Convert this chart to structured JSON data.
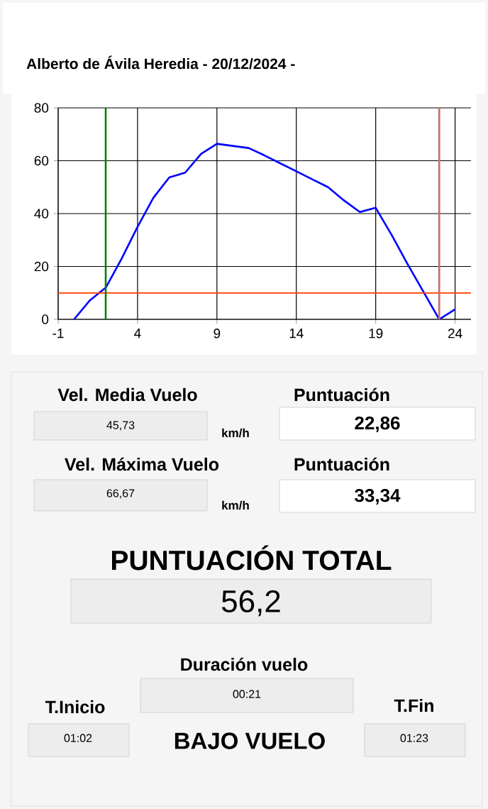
{
  "chart_data": [
    {
      "type": "line",
      "title": "Alberto de Ávila Heredia   -   20/12/2024   -",
      "x": [
        0,
        1,
        2,
        3,
        4,
        5,
        6,
        7,
        8,
        9,
        11,
        12,
        13,
        14,
        15,
        16,
        17,
        18,
        19,
        20,
        21,
        22,
        23,
        24
      ],
      "series": [
        {
          "color": "#0000ff",
          "values": [
            0,
            7.2,
            12,
            23,
            35,
            46,
            53.7,
            55.5,
            62.6,
            66.4,
            64.8,
            62,
            59,
            56,
            53,
            50,
            45,
            40.6,
            42.2,
            32,
            21,
            10.5,
            0,
            3.8
          ]
        }
      ],
      "xlim": [
        -1,
        25
      ],
      "ylim": [
        0,
        80
      ],
      "xticks": [
        -1,
        4,
        9,
        14,
        19,
        24
      ],
      "yticks": [
        0,
        20,
        40,
        60,
        80
      ],
      "grid": true,
      "marker": "none",
      "line_style": "solid",
      "ref_lines": [
        {
          "axis": "y",
          "value": 10,
          "color": "#ff4500"
        },
        {
          "axis": "x",
          "value": 2,
          "color": "#008000"
        },
        {
          "axis": "x",
          "value": 23,
          "color": "#c87070"
        }
      ]
    },
    {
      "type": "other",
      "annotations": [
        "Vel. Media Vuelo",
        "45,73",
        "km/h",
        "Puntuación",
        "22,86",
        "Vel. Máxima Vuelo",
        "66,67",
        "km/h",
        "Puntuación",
        "33,34",
        "PUNTUACIÓN TOTAL",
        "56,2",
        "Duración vuelo",
        "00:21",
        "T.Inicio",
        "01:02",
        "BAJO VUELO",
        "T.Fin",
        "01:23"
      ]
    }
  ]
}
